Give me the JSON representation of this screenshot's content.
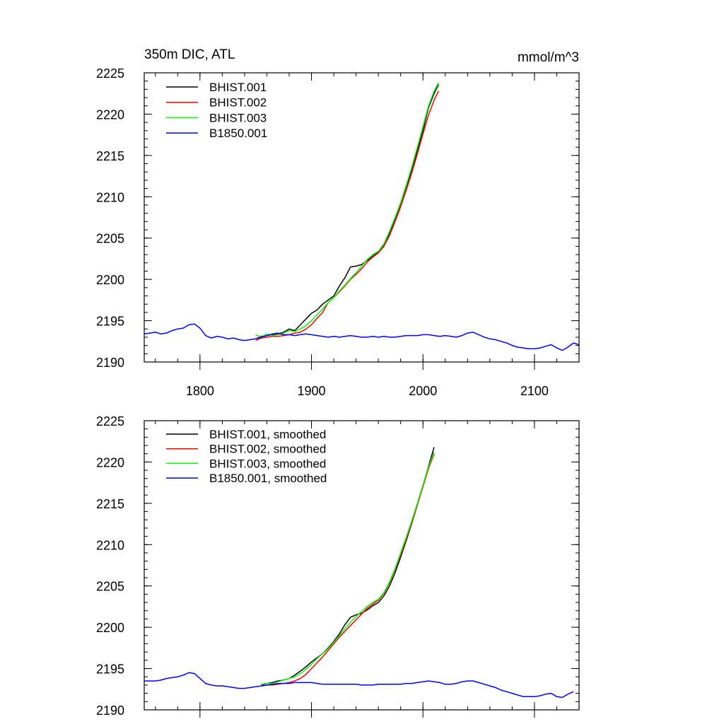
{
  "page": {
    "title_left": "350m DIC, ATL",
    "title_right": "mmol/m^3"
  },
  "chart_data": [
    {
      "type": "line",
      "xlim": [
        1750,
        2140
      ],
      "ylim": [
        2190,
        2225
      ],
      "xticks": [
        1800,
        1900,
        2000,
        2100
      ],
      "yticks": [
        2190,
        2195,
        2200,
        2205,
        2210,
        2215,
        2220,
        2225
      ],
      "xtick_labels_shown": true,
      "grid": false,
      "legend_position": "top-left",
      "series": [
        {
          "name": "BHIST.001",
          "color": "#000000",
          "x": [
            1850,
            1855,
            1860,
            1865,
            1870,
            1875,
            1880,
            1885,
            1890,
            1895,
            1900,
            1905,
            1910,
            1915,
            1920,
            1925,
            1930,
            1935,
            1940,
            1945,
            1950,
            1955,
            1960,
            1965,
            1970,
            1975,
            1980,
            1985,
            1990,
            1995,
            2000,
            2005,
            2010,
            2014
          ],
          "y": [
            2192.8,
            2193.1,
            2193.2,
            2193.3,
            2193.4,
            2193.6,
            2194.0,
            2193.8,
            2194.5,
            2195.2,
            2195.9,
            2196.3,
            2197.0,
            2197.5,
            2198.0,
            2199.2,
            2200.2,
            2201.5,
            2201.6,
            2201.8,
            2202.3,
            2202.8,
            2203.3,
            2204.2,
            2205.5,
            2207.3,
            2209.2,
            2211.2,
            2213.3,
            2215.6,
            2218.0,
            2220.8,
            2222.5,
            2223.6
          ]
        },
        {
          "name": "BHIST.002",
          "color": "#ff0000",
          "x": [
            1850,
            1855,
            1860,
            1865,
            1870,
            1875,
            1880,
            1885,
            1890,
            1895,
            1900,
            1905,
            1910,
            1915,
            1920,
            1925,
            1930,
            1935,
            1940,
            1945,
            1950,
            1955,
            1960,
            1965,
            1970,
            1975,
            1980,
            1985,
            1990,
            1995,
            2000,
            2005,
            2010,
            2014
          ],
          "y": [
            2192.6,
            2192.9,
            2193.0,
            2193.1,
            2193.1,
            2193.2,
            2193.3,
            2193.5,
            2193.6,
            2194.0,
            2194.5,
            2195.3,
            2196.0,
            2197.2,
            2197.8,
            2198.5,
            2199.2,
            2200.0,
            2200.6,
            2201.3,
            2202.1,
            2202.7,
            2203.2,
            2204.0,
            2205.3,
            2207.0,
            2208.8,
            2210.8,
            2212.9,
            2215.2,
            2217.6,
            2219.9,
            2221.7,
            2222.8
          ]
        },
        {
          "name": "BHIST.003",
          "color": "#00ff00",
          "x": [
            1850,
            1855,
            1860,
            1865,
            1870,
            1875,
            1880,
            1885,
            1890,
            1895,
            1900,
            1905,
            1910,
            1915,
            1920,
            1925,
            1930,
            1935,
            1940,
            1945,
            1950,
            1955,
            1960,
            1965,
            1970,
            1975,
            1980,
            1985,
            1990,
            1995,
            2000,
            2005,
            2010,
            2014
          ],
          "y": [
            2193.3,
            2193.0,
            2193.4,
            2193.2,
            2193.3,
            2193.5,
            2193.8,
            2193.7,
            2194.0,
            2194.4,
            2195.0,
            2195.7,
            2196.4,
            2197.2,
            2197.8,
            2198.6,
            2199.3,
            2200.1,
            2200.8,
            2201.6,
            2202.4,
            2203.0,
            2203.4,
            2204.3,
            2205.8,
            2207.5,
            2209.3,
            2211.4,
            2213.6,
            2216.0,
            2218.5,
            2221.0,
            2222.8,
            2223.8
          ]
        },
        {
          "name": "B1850.001",
          "color": "#0000ff",
          "x": [
            1750,
            1755,
            1760,
            1765,
            1770,
            1775,
            1780,
            1785,
            1790,
            1795,
            1800,
            1805,
            1810,
            1815,
            1820,
            1825,
            1830,
            1835,
            1840,
            1845,
            1850,
            1855,
            1860,
            1865,
            1870,
            1875,
            1880,
            1885,
            1890,
            1895,
            1900,
            1905,
            1910,
            1915,
            1920,
            1925,
            1930,
            1935,
            1940,
            1945,
            1950,
            1955,
            1960,
            1965,
            1970,
            1975,
            1980,
            1985,
            1990,
            1995,
            2000,
            2005,
            2010,
            2015,
            2020,
            2025,
            2030,
            2035,
            2040,
            2045,
            2050,
            2055,
            2060,
            2065,
            2070,
            2075,
            2080,
            2085,
            2090,
            2095,
            2100,
            2105,
            2110,
            2115,
            2120,
            2125,
            2130,
            2135,
            2140
          ],
          "y": [
            2193.4,
            2193.5,
            2193.6,
            2193.4,
            2193.5,
            2193.8,
            2194.0,
            2194.1,
            2194.5,
            2194.6,
            2194.1,
            2193.2,
            2192.9,
            2193.1,
            2193.0,
            2192.8,
            2192.9,
            2192.7,
            2192.6,
            2192.7,
            2192.8,
            2193.0,
            2193.2,
            2193.4,
            2193.5,
            2193.3,
            2193.3,
            2193.2,
            2193.3,
            2193.4,
            2193.3,
            2193.2,
            2193.1,
            2193.0,
            2193.1,
            2193.0,
            2193.1,
            2193.2,
            2193.1,
            2193.0,
            2193.0,
            2193.1,
            2193.0,
            2193.1,
            2193.0,
            2193.0,
            2193.1,
            2193.2,
            2193.2,
            2193.2,
            2193.3,
            2193.3,
            2193.2,
            2193.1,
            2193.2,
            2193.1,
            2193.0,
            2193.2,
            2193.5,
            2193.6,
            2193.3,
            2193.0,
            2192.8,
            2192.7,
            2192.5,
            2192.3,
            2192.0,
            2191.8,
            2191.7,
            2191.6,
            2191.6,
            2191.7,
            2191.9,
            2192.1,
            2191.7,
            2191.4,
            2191.8,
            2192.3,
            2192.1
          ]
        }
      ]
    },
    {
      "type": "line",
      "xlim": [
        1750,
        2140
      ],
      "ylim": [
        2190,
        2225
      ],
      "xticks": [
        1800,
        1900,
        2000,
        2100
      ],
      "yticks": [
        2190,
        2195,
        2200,
        2205,
        2210,
        2215,
        2220,
        2225
      ],
      "xtick_labels_shown": false,
      "grid": false,
      "legend_position": "top-left",
      "series": [
        {
          "name": "BHIST.001, smoothed",
          "color": "#000000",
          "x": [
            1855,
            1860,
            1865,
            1870,
            1875,
            1880,
            1885,
            1890,
            1895,
            1900,
            1905,
            1910,
            1915,
            1920,
            1925,
            1930,
            1935,
            1940,
            1945,
            1950,
            1955,
            1960,
            1965,
            1970,
            1975,
            1980,
            1985,
            1990,
            1995,
            2000,
            2005,
            2010
          ],
          "y": [
            2193.0,
            2193.2,
            2193.3,
            2193.5,
            2193.6,
            2193.8,
            2194.2,
            2194.7,
            2195.2,
            2195.8,
            2196.3,
            2196.8,
            2197.5,
            2198.3,
            2199.2,
            2200.3,
            2201.2,
            2201.5,
            2201.7,
            2202.1,
            2202.6,
            2203.0,
            2203.8,
            2205.0,
            2206.6,
            2208.5,
            2210.5,
            2212.6,
            2214.8,
            2217.1,
            2219.5,
            2221.8
          ]
        },
        {
          "name": "BHIST.002, smoothed",
          "color": "#ff0000",
          "x": [
            1855,
            1860,
            1865,
            1870,
            1875,
            1880,
            1885,
            1890,
            1895,
            1900,
            1905,
            1910,
            1915,
            1920,
            1925,
            1930,
            1935,
            1940,
            1945,
            1950,
            1955,
            1960,
            1965,
            1970,
            1975,
            1980,
            1985,
            1990,
            1995,
            2000,
            2005,
            2010
          ],
          "y": [
            2192.9,
            2193.0,
            2193.0,
            2193.1,
            2193.2,
            2193.3,
            2193.5,
            2193.8,
            2194.3,
            2195.0,
            2195.7,
            2196.4,
            2197.2,
            2198.0,
            2198.8,
            2199.5,
            2200.2,
            2200.9,
            2201.6,
            2202.3,
            2202.8,
            2203.3,
            2204.1,
            2205.4,
            2207.0,
            2208.8,
            2210.7,
            2212.7,
            2214.8,
            2217.0,
            2219.2,
            2221.0
          ]
        },
        {
          "name": "BHIST.003, smoothed",
          "color": "#00ff00",
          "x": [
            1855,
            1860,
            1865,
            1870,
            1875,
            1880,
            1885,
            1890,
            1895,
            1900,
            1905,
            1910,
            1915,
            1920,
            1925,
            1930,
            1935,
            1940,
            1945,
            1950,
            1955,
            1960,
            1965,
            1970,
            1975,
            1980,
            1985,
            1990,
            1995,
            2000,
            2005,
            2010
          ],
          "y": [
            2193.1,
            2193.2,
            2193.2,
            2193.4,
            2193.6,
            2193.8,
            2194.0,
            2194.4,
            2194.9,
            2195.5,
            2196.2,
            2196.8,
            2197.4,
            2198.2,
            2199.0,
            2199.8,
            2200.6,
            2201.3,
            2201.9,
            2202.5,
            2203.0,
            2203.4,
            2204.2,
            2205.5,
            2207.1,
            2209.0,
            2210.9,
            2212.9,
            2215.0,
            2217.2,
            2219.4,
            2221.2
          ]
        },
        {
          "name": "B1850.001, smoothed",
          "color": "#0000ff",
          "x": [
            1750,
            1755,
            1760,
            1765,
            1770,
            1775,
            1780,
            1785,
            1790,
            1795,
            1800,
            1805,
            1810,
            1815,
            1820,
            1825,
            1830,
            1835,
            1840,
            1845,
            1850,
            1855,
            1860,
            1865,
            1870,
            1875,
            1880,
            1885,
            1890,
            1895,
            1900,
            1905,
            1910,
            1915,
            1920,
            1925,
            1930,
            1935,
            1940,
            1945,
            1950,
            1955,
            1960,
            1965,
            1970,
            1975,
            1980,
            1985,
            1990,
            1995,
            2000,
            2005,
            2010,
            2015,
            2020,
            2025,
            2030,
            2035,
            2040,
            2045,
            2050,
            2055,
            2060,
            2065,
            2070,
            2075,
            2080,
            2085,
            2090,
            2095,
            2100,
            2105,
            2110,
            2115,
            2120,
            2125,
            2130,
            2135
          ],
          "y": [
            2193.5,
            2193.5,
            2193.5,
            2193.6,
            2193.8,
            2193.9,
            2194.0,
            2194.2,
            2194.5,
            2194.4,
            2193.8,
            2193.2,
            2193.0,
            2192.9,
            2192.9,
            2192.8,
            2192.7,
            2192.6,
            2192.6,
            2192.7,
            2192.8,
            2192.9,
            2193.0,
            2193.1,
            2193.2,
            2193.2,
            2193.2,
            2193.3,
            2193.3,
            2193.3,
            2193.3,
            2193.2,
            2193.1,
            2193.1,
            2193.1,
            2193.1,
            2193.1,
            2193.1,
            2193.1,
            2193.0,
            2193.0,
            2193.0,
            2193.1,
            2193.1,
            2193.1,
            2193.1,
            2193.1,
            2193.2,
            2193.2,
            2193.3,
            2193.4,
            2193.5,
            2193.4,
            2193.3,
            2193.1,
            2193.1,
            2193.2,
            2193.4,
            2193.5,
            2193.5,
            2193.3,
            2193.1,
            2192.9,
            2192.7,
            2192.4,
            2192.2,
            2192.0,
            2191.8,
            2191.6,
            2191.6,
            2191.6,
            2191.7,
            2191.9,
            2192.0,
            2191.6,
            2191.5,
            2191.9,
            2192.2
          ]
        }
      ]
    }
  ]
}
